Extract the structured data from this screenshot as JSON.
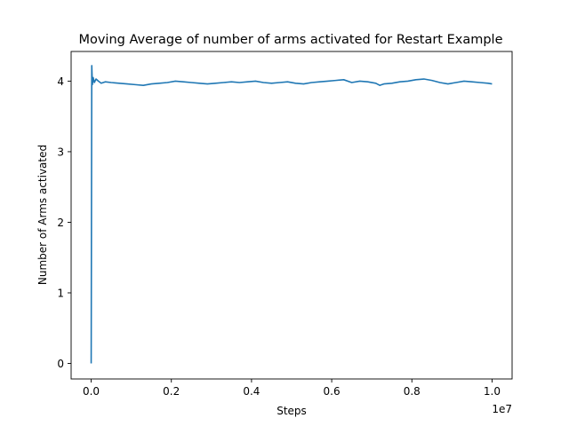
{
  "chart_data": {
    "type": "line",
    "title": "Moving Average of number of arms activated for Restart Example",
    "xlabel": "Steps",
    "ylabel": "Number of Arms activated",
    "x_offset_label": "1e7",
    "xlim": [
      -500000,
      10500000
    ],
    "ylim": [
      -0.22,
      4.42
    ],
    "x_ticks": [
      0,
      2000000,
      4000000,
      6000000,
      8000000,
      10000000
    ],
    "x_tick_labels": [
      "0.0",
      "0.2",
      "0.4",
      "0.6",
      "0.8",
      "1.0"
    ],
    "y_ticks": [
      0,
      1,
      2,
      3,
      4
    ],
    "y_tick_labels": [
      "0",
      "1",
      "2",
      "3",
      "4"
    ],
    "grid": false,
    "colors": {
      "series": "#1f77b4",
      "axes": "#000000",
      "background": "#ffffff"
    },
    "series": [
      {
        "x": [
          0,
          15000,
          30000,
          50000,
          80000,
          120000,
          180000,
          250000,
          350000,
          500000,
          700000,
          900000,
          1100000,
          1300000,
          1500000,
          1700000,
          1900000,
          2100000,
          2300000,
          2500000,
          2700000,
          2900000,
          3100000,
          3300000,
          3500000,
          3700000,
          3900000,
          4100000,
          4300000,
          4500000,
          4700000,
          4900000,
          5100000,
          5300000,
          5500000,
          5700000,
          5900000,
          6100000,
          6300000,
          6500000,
          6700000,
          6900000,
          7100000,
          7200000,
          7300000,
          7500000,
          7700000,
          7900000,
          8100000,
          8300000,
          8500000,
          8700000,
          8900000,
          9100000,
          9300000,
          9500000,
          9700000,
          9900000,
          10000000
        ],
        "y": [
          0,
          4.22,
          3.95,
          4.05,
          3.98,
          4.03,
          4.0,
          3.97,
          3.99,
          3.98,
          3.97,
          3.96,
          3.95,
          3.94,
          3.96,
          3.97,
          3.98,
          4.0,
          3.99,
          3.98,
          3.97,
          3.96,
          3.97,
          3.98,
          3.99,
          3.98,
          3.99,
          4.0,
          3.98,
          3.97,
          3.98,
          3.99,
          3.97,
          3.96,
          3.98,
          3.99,
          4.0,
          4.01,
          4.02,
          3.98,
          4.0,
          3.99,
          3.97,
          3.94,
          3.96,
          3.97,
          3.99,
          4.0,
          4.02,
          4.03,
          4.01,
          3.98,
          3.96,
          3.98,
          4.0,
          3.99,
          3.98,
          3.97,
          3.96
        ]
      }
    ]
  }
}
